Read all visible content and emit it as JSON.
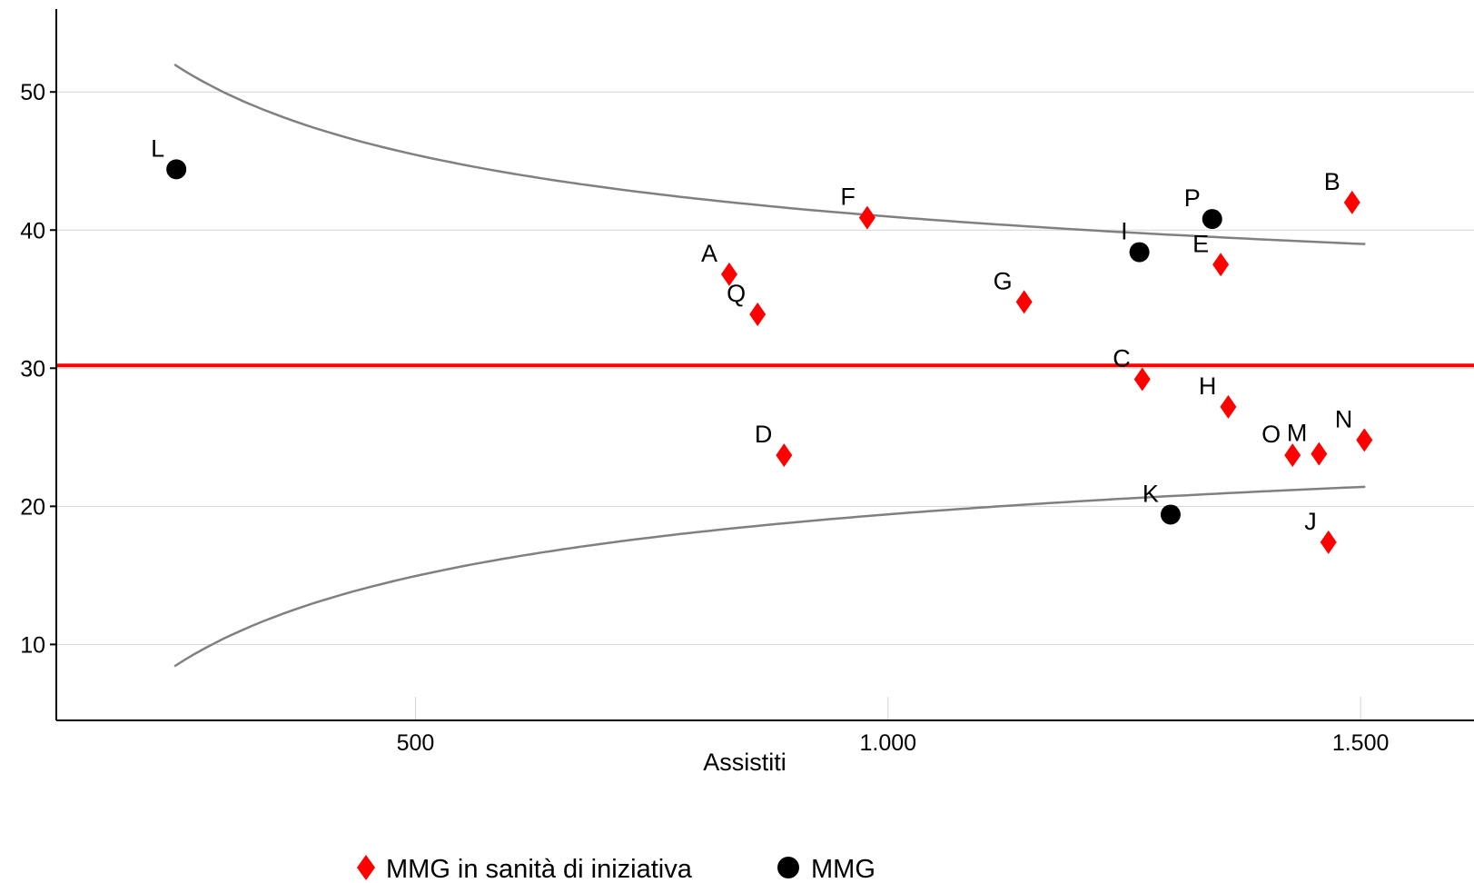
{
  "chart_data": {
    "type": "scatter",
    "xlabel": "Assistiti",
    "ylabel": "",
    "xlim": [
      120,
      1620
    ],
    "ylim": [
      4.5,
      56
    ],
    "x_ticks": [
      500,
      1000,
      1500
    ],
    "x_tick_labels": [
      "500",
      "1.000",
      "1.500"
    ],
    "y_ticks": [
      10,
      20,
      30,
      40,
      50
    ],
    "y_tick_labels": [
      "10",
      "20",
      "30",
      "40",
      "50"
    ],
    "grid": "horizontal",
    "reference_line": {
      "y": 30.2,
      "color": "#ff0000"
    },
    "control_limits": {
      "color": "#808080",
      "x_range": [
        245,
        1505
      ],
      "center": 30.2,
      "k": 341
    },
    "series": [
      {
        "name": "MMG in sanità di iniziativa",
        "marker": "diamond",
        "color": "#ff0000",
        "points": [
          {
            "label": "A",
            "x": 832,
            "y": 36.8
          },
          {
            "label": "Q",
            "x": 862,
            "y": 33.9
          },
          {
            "label": "F",
            "x": 978,
            "y": 40.9
          },
          {
            "label": "G",
            "x": 1144,
            "y": 34.8
          },
          {
            "label": "D",
            "x": 890,
            "y": 23.7
          },
          {
            "label": "C",
            "x": 1269,
            "y": 29.2
          },
          {
            "label": "E",
            "x": 1352,
            "y": 37.5
          },
          {
            "label": "H",
            "x": 1360,
            "y": 27.2
          },
          {
            "label": "B",
            "x": 1491,
            "y": 42.0
          },
          {
            "label": "O",
            "x": 1428,
            "y": 23.7
          },
          {
            "label": "M",
            "x": 1456,
            "y": 23.8
          },
          {
            "label": "N",
            "x": 1504,
            "y": 24.8
          },
          {
            "label": "J",
            "x": 1466,
            "y": 17.4
          }
        ]
      },
      {
        "name": "MMG",
        "marker": "circle",
        "color": "#000000",
        "points": [
          {
            "label": "L",
            "x": 247,
            "y": 44.4
          },
          {
            "label": "I",
            "x": 1266,
            "y": 38.4
          },
          {
            "label": "P",
            "x": 1343,
            "y": 40.8
          },
          {
            "label": "K",
            "x": 1299,
            "y": 19.4
          }
        ]
      }
    ]
  }
}
